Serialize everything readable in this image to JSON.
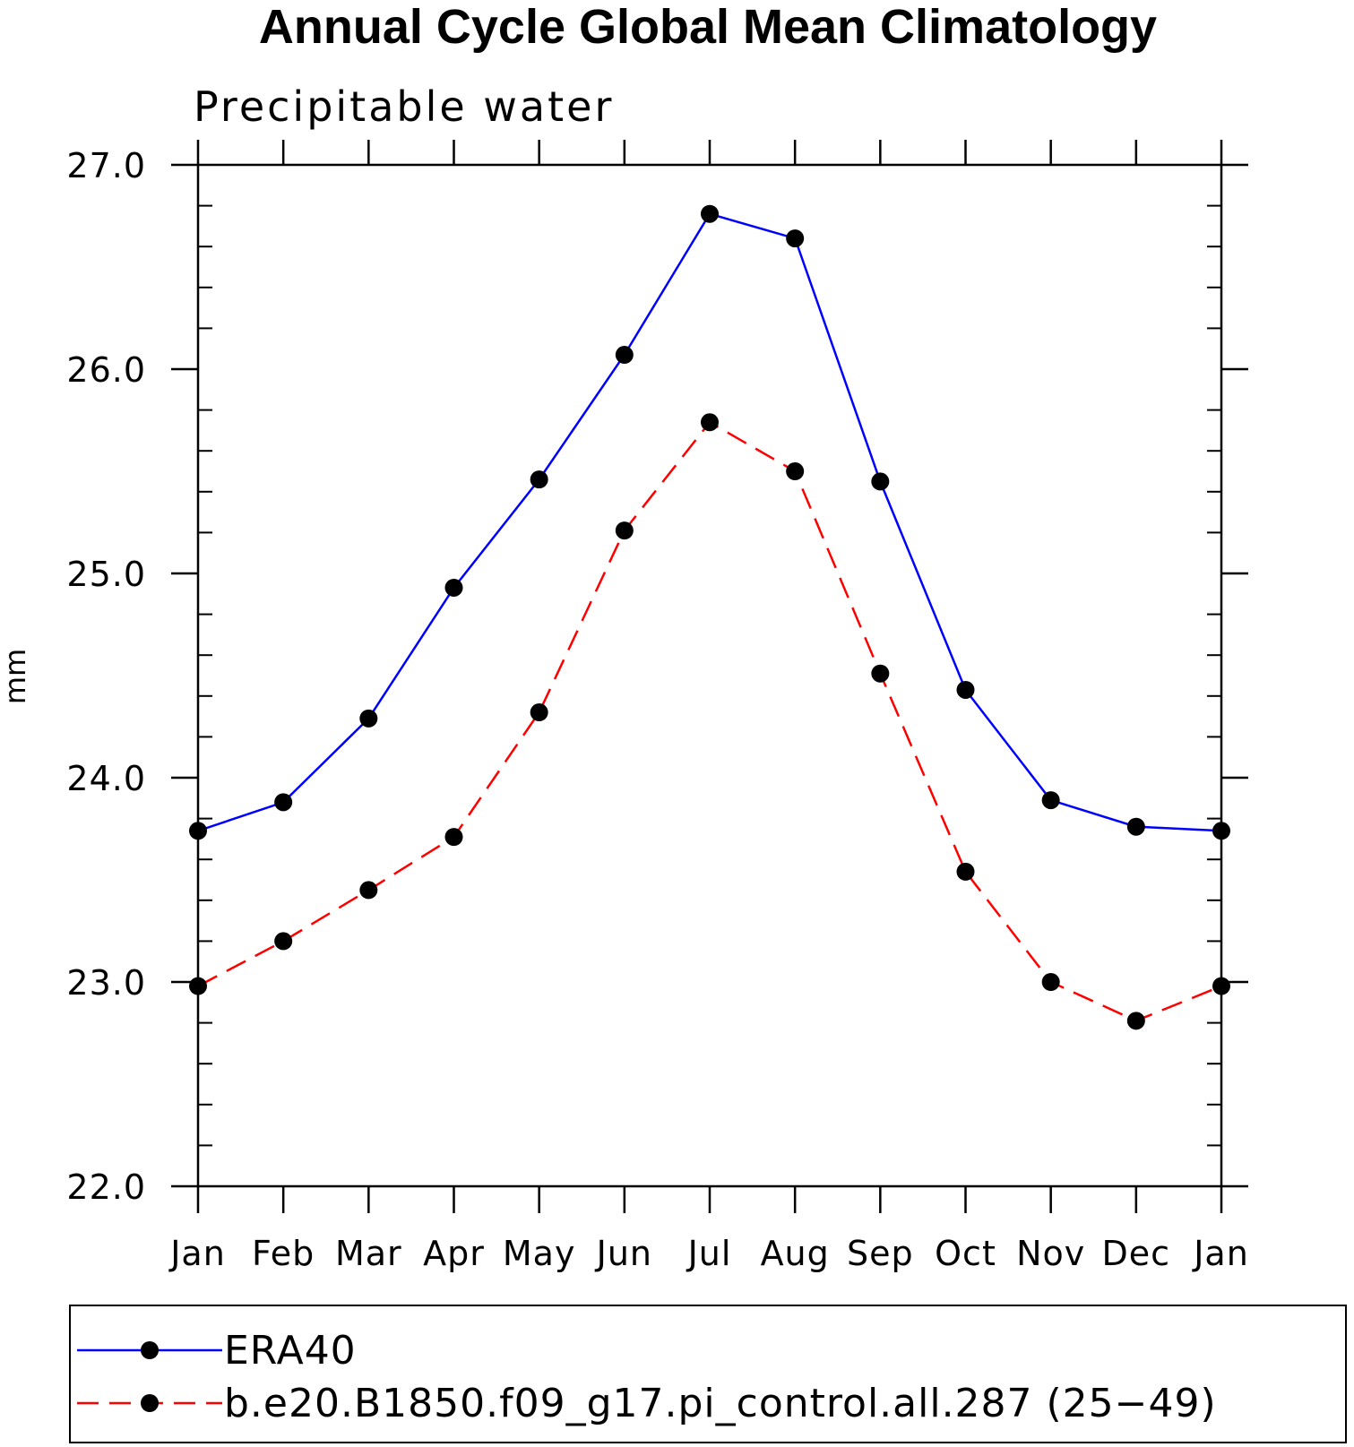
{
  "chart_data": {
    "type": "line",
    "title": "Annual Cycle Global Mean Climatology",
    "subtitle": "Precipitable water",
    "xlabel": "",
    "ylabel": "mm",
    "categories": [
      "Jan",
      "Feb",
      "Mar",
      "Apr",
      "May",
      "Jun",
      "Jul",
      "Aug",
      "Sep",
      "Oct",
      "Nov",
      "Dec",
      "Jan"
    ],
    "ylim": [
      22.0,
      27.0
    ],
    "yticks": [
      "22.0",
      "23.0",
      "24.0",
      "25.0",
      "26.0",
      "27.0"
    ],
    "grid": false,
    "legend_position": "bottom",
    "series": [
      {
        "name": "ERA40",
        "color": "#0000ff",
        "dash": "solid",
        "marker": "filled-circle",
        "values": [
          23.74,
          23.88,
          24.29,
          24.93,
          25.46,
          26.07,
          26.76,
          26.64,
          25.45,
          24.43,
          23.89,
          23.76,
          23.74
        ]
      },
      {
        "name": "b.e20.B1850.f09_g17.pi_control.all.287 (25−49)",
        "color": "#ff0000",
        "dash": "dashed",
        "marker": "filled-circle",
        "values": [
          22.98,
          23.2,
          23.45,
          23.71,
          24.32,
          25.21,
          25.74,
          25.5,
          24.51,
          23.54,
          23.0,
          22.81,
          22.98
        ]
      }
    ]
  }
}
